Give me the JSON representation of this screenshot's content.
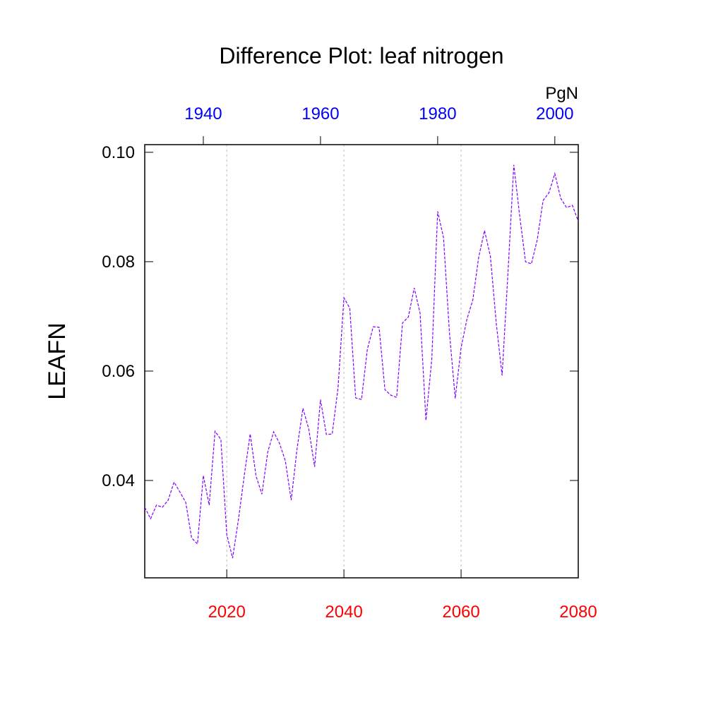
{
  "chart_data": {
    "type": "line",
    "title": "Difference Plot: leaf nitrogen",
    "ylabel": "LEAFN",
    "units": "PgN",
    "x": [
      2006,
      2007,
      2008,
      2009,
      2010,
      2011,
      2012,
      2013,
      2014,
      2015,
      2016,
      2017,
      2018,
      2019,
      2020,
      2021,
      2022,
      2023,
      2024,
      2025,
      2026,
      2027,
      2028,
      2029,
      2030,
      2031,
      2032,
      2033,
      2034,
      2035,
      2036,
      2037,
      2038,
      2039,
      2040,
      2041,
      2042,
      2043,
      2044,
      2045,
      2046,
      2047,
      2048,
      2049,
      2050,
      2051,
      2052,
      2053,
      2054,
      2055,
      2056,
      2057,
      2058,
      2059,
      2060,
      2061,
      2062,
      2063,
      2064,
      2065,
      2066,
      2067,
      2068,
      2069,
      2070,
      2071,
      2072,
      2073,
      2074,
      2075,
      2076,
      2077,
      2078,
      2079,
      2080
    ],
    "series": [
      {
        "color": "#7f00ff",
        "values": [
          0.0351,
          0.033,
          0.0355,
          0.0351,
          0.0364,
          0.0397,
          0.0379,
          0.036,
          0.0295,
          0.0284,
          0.0409,
          0.0355,
          0.049,
          0.0475,
          0.0301,
          0.0258,
          0.0329,
          0.041,
          0.0485,
          0.0408,
          0.0375,
          0.0452,
          0.0489,
          0.0468,
          0.0436,
          0.0364,
          0.0458,
          0.0532,
          0.0494,
          0.0425,
          0.0548,
          0.0484,
          0.0485,
          0.057,
          0.0734,
          0.0715,
          0.0551,
          0.0548,
          0.064,
          0.0681,
          0.068,
          0.0566,
          0.0556,
          0.0552,
          0.0688,
          0.0699,
          0.0752,
          0.0706,
          0.051,
          0.0622,
          0.0892,
          0.0844,
          0.0672,
          0.055,
          0.0643,
          0.0695,
          0.073,
          0.0808,
          0.0857,
          0.081,
          0.0688,
          0.0592,
          0.0779,
          0.0977,
          0.0884,
          0.08,
          0.0796,
          0.084,
          0.0912,
          0.0926,
          0.0961,
          0.0916,
          0.0899,
          0.0903,
          0.0874
        ]
      }
    ],
    "xlim": [
      2006,
      2080
    ],
    "xticks": [
      2020,
      2040,
      2060,
      2080
    ],
    "xtick_color": "#ff0000",
    "x2lim": [
      1930,
      2004
    ],
    "x2ticks": [
      1940,
      1960,
      1980,
      2000
    ],
    "x2tick_color": "#0000ff",
    "ylim": [
      0.0222,
      0.1014
    ],
    "yticks": [
      0.04,
      0.06,
      0.08,
      {
        "value": 0.1,
        "label": "0.10"
      }
    ],
    "grid": true,
    "dashed": true
  }
}
